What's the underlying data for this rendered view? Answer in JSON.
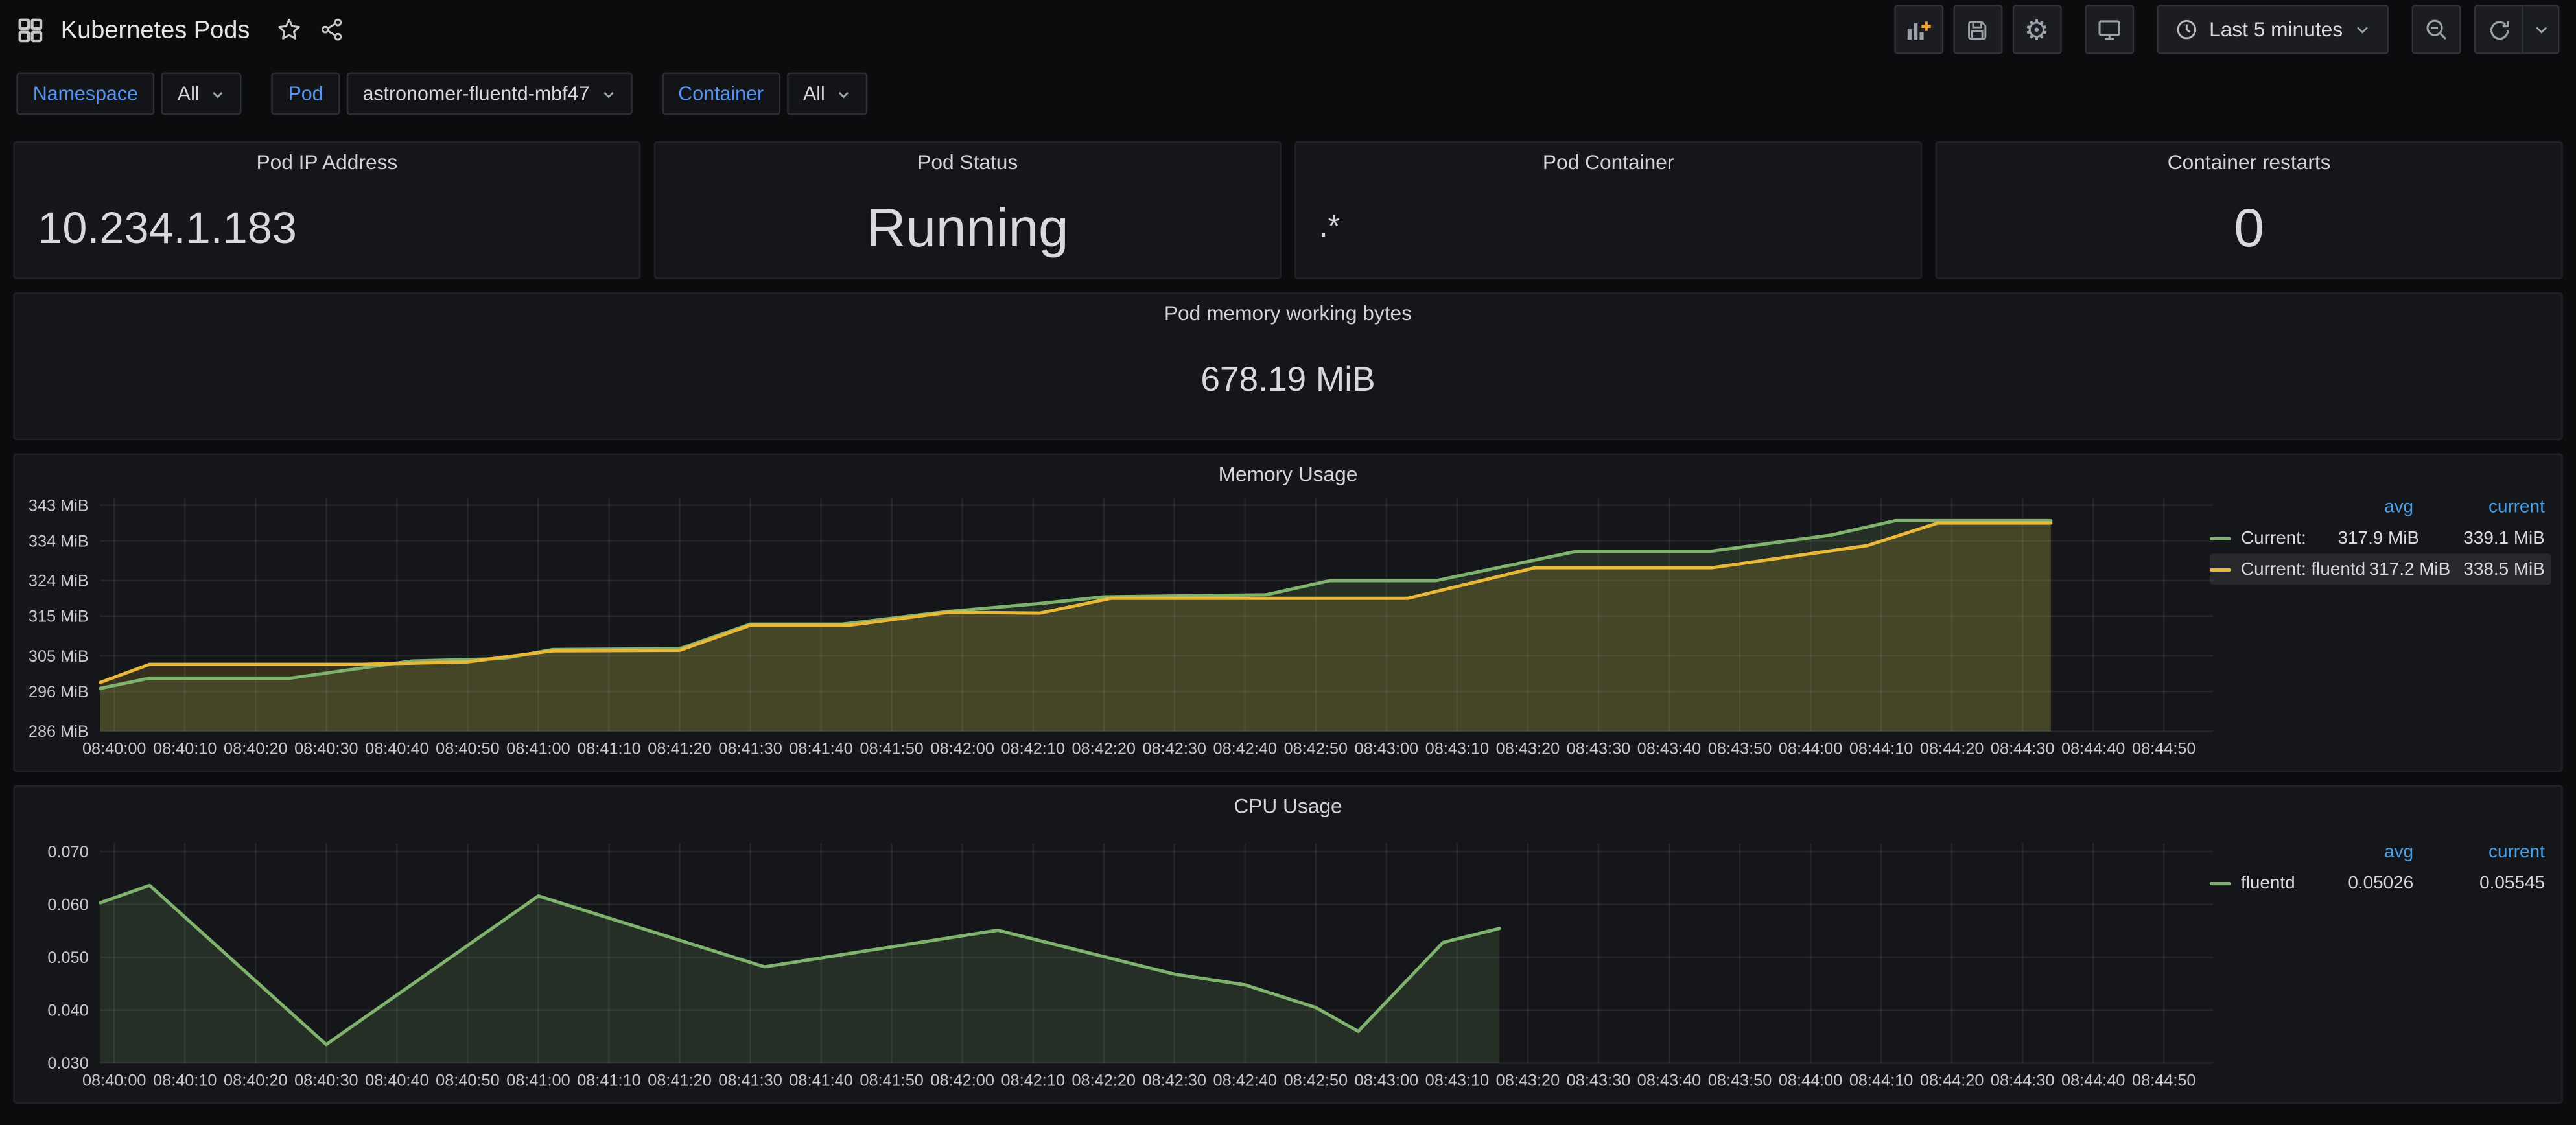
{
  "theme": {
    "page_bg": "#0b0c0e",
    "panel_bg": "#151619",
    "panel_border": "#202226",
    "text_primary": "#d8d9da",
    "text_secondary": "#9fa6ad",
    "axis_text": "#c7c8ca",
    "grid_color": "rgba(255,255,255,0.07)",
    "accent_blue": "#5794f2",
    "legend_header_blue": "#4a9fe8",
    "series_green": "#7eb26d",
    "series_yellow": "#eab839",
    "add_panel_plus_orange": "#f2a33c"
  },
  "header": {
    "title": "Kubernetes Pods",
    "icons": [
      "dashboard-grid-icon",
      "star-icon",
      "share-icon"
    ],
    "toolbar": {
      "add_panel": "add-panel-icon",
      "save": "save-dashboard-icon",
      "settings": "gear-icon",
      "cycle_view": "tv-icon",
      "time_range_label": "Last 5 minutes",
      "zoom_out": "zoom-out-icon",
      "refresh": "refresh-icon"
    }
  },
  "variables": [
    {
      "label": "Namespace",
      "value": "All"
    },
    {
      "label": "Pod",
      "value": "astronomer-fluentd-mbf47"
    },
    {
      "label": "Container",
      "value": "All"
    }
  ],
  "stat_panels": [
    {
      "title": "Pod IP Address",
      "value": "10.234.1.183"
    },
    {
      "title": "Pod Status",
      "value": "Running"
    },
    {
      "title": "Pod Container",
      "value": ".*"
    },
    {
      "title": "Container restarts",
      "value": "0"
    }
  ],
  "memory_stat_panel": {
    "title": "Pod memory working bytes",
    "value": "678.19 MiB"
  },
  "chart_data": [
    {
      "type": "area",
      "title": "Memory Usage",
      "x_tick_labels": [
        "08:40:00",
        "08:40:10",
        "08:40:20",
        "08:40:30",
        "08:40:40",
        "08:40:50",
        "08:41:00",
        "08:41:10",
        "08:41:20",
        "08:41:30",
        "08:41:40",
        "08:41:50",
        "08:42:00",
        "08:42:10",
        "08:42:20",
        "08:42:30",
        "08:42:40",
        "08:42:50",
        "08:43:00",
        "08:43:10",
        "08:43:20",
        "08:43:30",
        "08:43:40",
        "08:43:50",
        "08:44:00",
        "08:44:10",
        "08:44:20",
        "08:44:30",
        "08:44:40",
        "08:44:50"
      ],
      "x_domain_seconds": [
        -2,
        297
      ],
      "y_domain": [
        286,
        345
      ],
      "y_ticks": [
        {
          "value": 286,
          "label": "286 MiB"
        },
        {
          "value": 296,
          "label": "296 MiB"
        },
        {
          "value": 305,
          "label": "305 MiB"
        },
        {
          "value": 315,
          "label": "315 MiB"
        },
        {
          "value": 324,
          "label": "324 MiB"
        },
        {
          "value": 334,
          "label": "334 MiB"
        },
        {
          "value": 343,
          "label": "343 MiB"
        }
      ],
      "grid": true,
      "legend_position": "right",
      "series": [
        {
          "name": "Current:",
          "color_key": "series_green",
          "points": [
            [
              -2,
              296.8
            ],
            [
              5,
              299.4
            ],
            [
              25,
              299.4
            ],
            [
              42,
              303.7
            ],
            [
              55,
              304.3
            ],
            [
              62,
              306.6
            ],
            [
              80,
              306.8
            ],
            [
              90,
              313.0
            ],
            [
              103,
              313.0
            ],
            [
              118,
              316.2
            ],
            [
              131,
              318.2
            ],
            [
              140,
              319.9
            ],
            [
              163,
              320.4
            ],
            [
              172,
              324.0
            ],
            [
              187,
              324.0
            ],
            [
              207,
              331.4
            ],
            [
              226,
              331.4
            ],
            [
              243,
              335.5
            ],
            [
              252,
              339.1
            ],
            [
              274,
              339.1
            ]
          ]
        },
        {
          "name": "Current: fluentd",
          "color_key": "series_yellow",
          "points": [
            [
              -2,
              298.3
            ],
            [
              5,
              302.9
            ],
            [
              35,
              302.9
            ],
            [
              50,
              303.5
            ],
            [
              62,
              306.3
            ],
            [
              80,
              306.4
            ],
            [
              90,
              312.7
            ],
            [
              104,
              312.7
            ],
            [
              118,
              316.0
            ],
            [
              131,
              315.8
            ],
            [
              141,
              319.5
            ],
            [
              183,
              319.5
            ],
            [
              201,
              327.2
            ],
            [
              226,
              327.2
            ],
            [
              248,
              332.8
            ],
            [
              258,
              338.5
            ],
            [
              274,
              338.5
            ]
          ]
        }
      ],
      "legend": {
        "columns": [
          "avg",
          "current"
        ],
        "rows": [
          {
            "name": "Current:",
            "color_key": "series_green",
            "avg": "317.9 MiB",
            "current": "339.1 MiB",
            "highlight": false
          },
          {
            "name": "Current: fluentd",
            "color_key": "series_yellow",
            "avg": "317.2 MiB",
            "current": "338.5 MiB",
            "highlight": true
          }
        ]
      }
    },
    {
      "type": "area",
      "title": "CPU Usage",
      "x_tick_labels": [
        "08:40:00",
        "08:40:10",
        "08:40:20",
        "08:40:30",
        "08:40:40",
        "08:40:50",
        "08:41:00",
        "08:41:10",
        "08:41:20",
        "08:41:30",
        "08:41:40",
        "08:41:50",
        "08:42:00",
        "08:42:10",
        "08:42:20",
        "08:42:30",
        "08:42:40",
        "08:42:50",
        "08:43:00",
        "08:43:10",
        "08:43:20",
        "08:43:30",
        "08:43:40",
        "08:43:50",
        "08:44:00",
        "08:44:10",
        "08:44:20",
        "08:44:30",
        "08:44:40",
        "08:44:50"
      ],
      "x_domain_seconds": [
        -2,
        297
      ],
      "y_domain": [
        0.03,
        0.0715
      ],
      "y_ticks": [
        {
          "value": 0.03,
          "label": "0.030"
        },
        {
          "value": 0.04,
          "label": "0.040"
        },
        {
          "value": 0.05,
          "label": "0.050"
        },
        {
          "value": 0.06,
          "label": "0.060"
        },
        {
          "value": 0.07,
          "label": "0.070"
        }
      ],
      "grid": true,
      "legend_position": "right",
      "series": [
        {
          "name": "fluentd",
          "color_key": "series_green",
          "points": [
            [
              -2,
              0.0603
            ],
            [
              5,
              0.0636
            ],
            [
              30,
              0.0335
            ],
            [
              60,
              0.0616
            ],
            [
              92,
              0.0482
            ],
            [
              125,
              0.0551
            ],
            [
              150,
              0.0468
            ],
            [
              160,
              0.0448
            ],
            [
              170,
              0.0405
            ],
            [
              176,
              0.036
            ],
            [
              188,
              0.0528
            ],
            [
              196,
              0.05545
            ]
          ]
        }
      ],
      "legend": {
        "columns": [
          "avg",
          "current"
        ],
        "rows": [
          {
            "name": "fluentd",
            "color_key": "series_green",
            "avg": "0.05026",
            "current": "0.05545",
            "highlight": false
          }
        ]
      }
    }
  ]
}
